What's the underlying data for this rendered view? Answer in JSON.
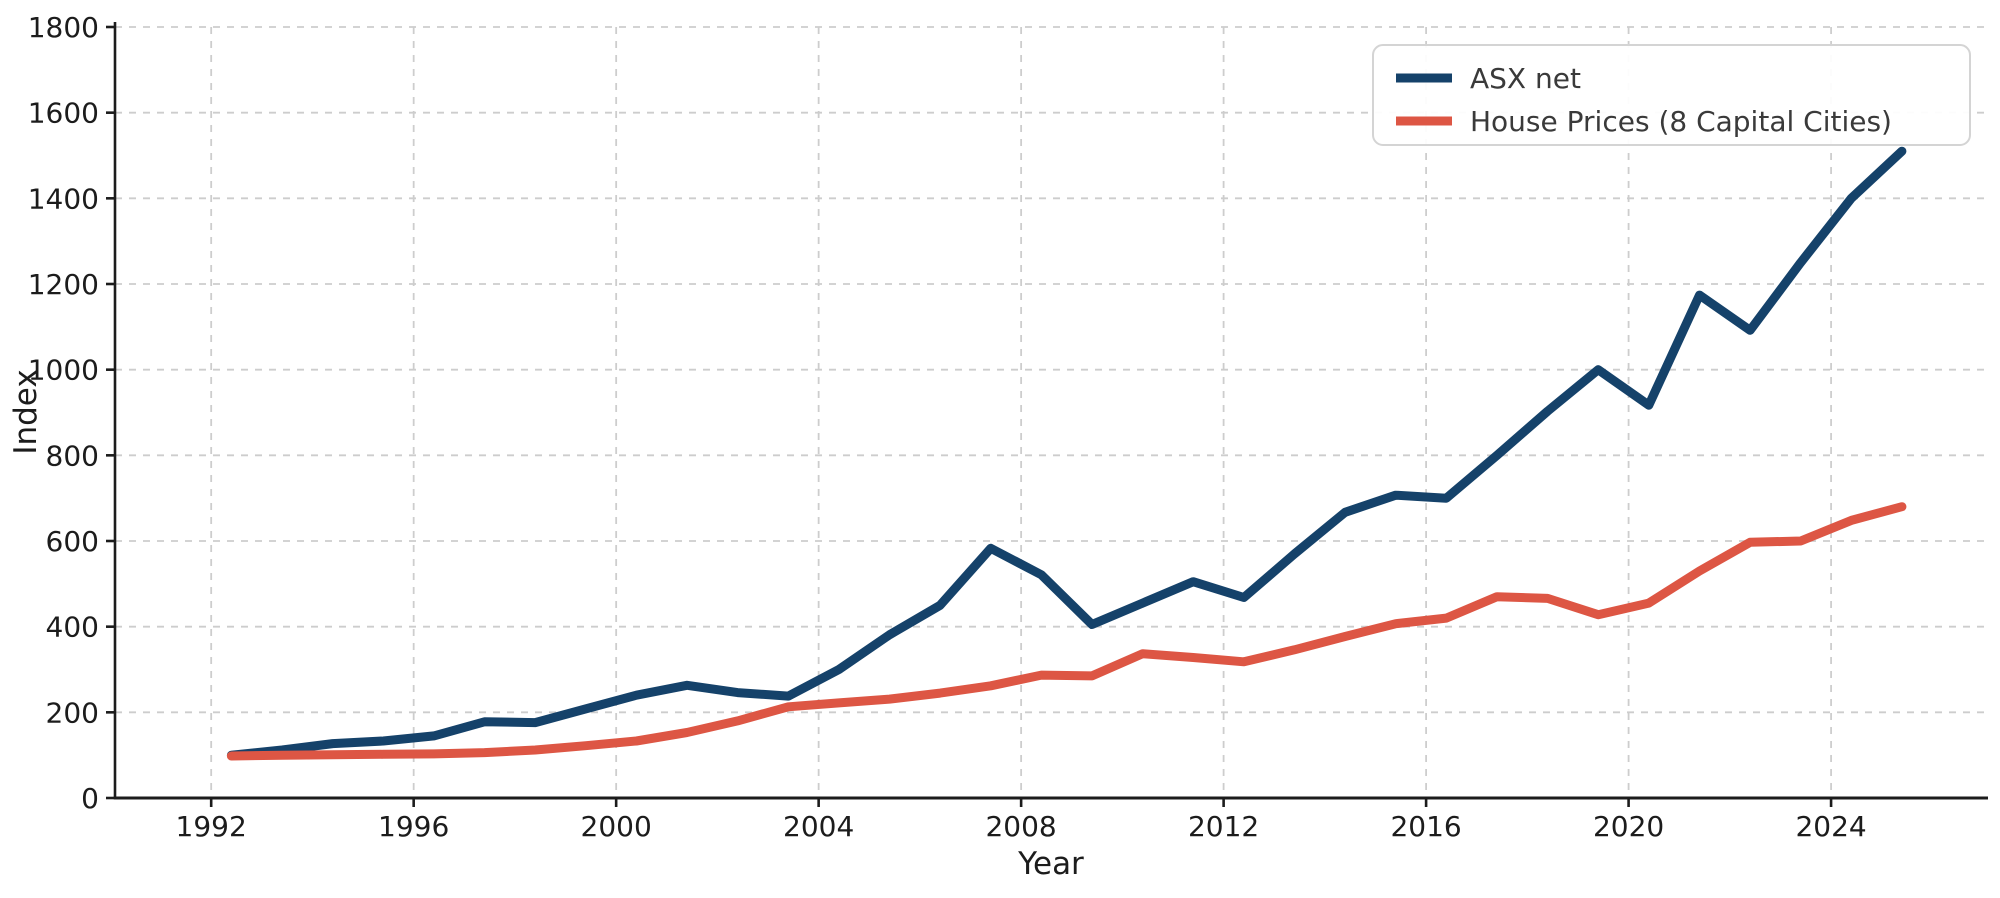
{
  "figure": {
    "background": "#ffffff",
    "axis_color": "#1c1c1c",
    "grid_color": "#cdcdcd",
    "legend_border_color": "#d4d4d4",
    "legend_background": "#ffffff"
  },
  "chart_data": {
    "type": "line",
    "title": "",
    "xlabel": "Year",
    "ylabel": "Index",
    "xlim": [
      1990.1,
      2027.1
    ],
    "ylim": [
      0,
      1800
    ],
    "xticks": [
      1992,
      1996,
      2000,
      2004,
      2008,
      2012,
      2016,
      2020,
      2024
    ],
    "yticks": [
      0,
      200,
      400,
      600,
      800,
      1000,
      1200,
      1400,
      1600,
      1800
    ],
    "grid": true,
    "grid_style": "dashed",
    "legend_position": "upper right",
    "x": [
      1992.4,
      1993.4,
      1994.4,
      1995.4,
      1996.4,
      1997.4,
      1998.4,
      1999.4,
      2000.4,
      2001.4,
      2002.4,
      2003.4,
      2004.4,
      2005.4,
      2006.4,
      2007.4,
      2008.4,
      2009.4,
      2010.4,
      2011.4,
      2012.4,
      2013.4,
      2014.4,
      2015.4,
      2016.4,
      2017.4,
      2018.4,
      2019.4,
      2020.4,
      2021.4,
      2022.4,
      2023.4,
      2024.4,
      2025.4
    ],
    "series": [
      {
        "name": "ASX net",
        "color": "#15426a",
        "values": [
          100,
          112,
          127,
          133,
          145,
          178,
          176,
          208,
          240,
          263,
          246,
          238,
          300,
          381,
          450,
          583,
          521,
          405,
          455,
          505,
          468,
          570,
          667,
          707,
          700,
          800,
          903,
          1000,
          917,
          1174,
          1092,
          1250,
          1400,
          1510
        ]
      },
      {
        "name": "House Prices (8 Capital Cities)",
        "color": "#dd5644",
        "values": [
          98,
          100,
          101,
          102,
          103,
          106,
          112,
          122,
          133,
          153,
          180,
          213,
          222,
          231,
          245,
          262,
          287,
          285,
          337,
          328,
          318,
          346,
          377,
          407,
          420,
          470,
          466,
          428,
          455,
          530,
          597,
          600,
          648,
          680
        ]
      }
    ]
  }
}
